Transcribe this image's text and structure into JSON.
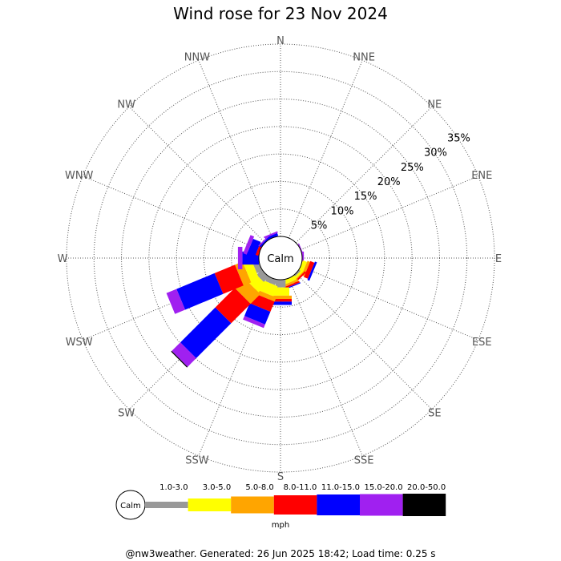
{
  "chart_data": {
    "type": "windrose",
    "title": "Wind rose for 23 Nov 2024",
    "directions": [
      "N",
      "NNE",
      "NE",
      "ENE",
      "E",
      "ESE",
      "SE",
      "SSE",
      "S",
      "SSW",
      "SW",
      "WSW",
      "W",
      "WNW",
      "NW",
      "NNW"
    ],
    "ring_labels": [
      "5%",
      "10%",
      "15%",
      "20%",
      "25%",
      "30%",
      "35%"
    ],
    "ring_values": [
      5,
      10,
      15,
      20,
      25,
      30,
      35
    ],
    "calm_label": "Calm",
    "speed_bins": [
      {
        "label": "1.0-3.0",
        "color": "#999999"
      },
      {
        "label": "3.0-5.0",
        "color": "#ffff00"
      },
      {
        "label": "5.0-8.0",
        "color": "#ffa500"
      },
      {
        "label": "8.0-11.0",
        "color": "#ff0000"
      },
      {
        "label": "11.0-15.0",
        "color": "#0000ff"
      },
      {
        "label": "15.0-20.0",
        "color": "#a020f0"
      },
      {
        "label": "20.0-50.0",
        "color": "#000000"
      }
    ],
    "series": [
      {
        "direction": "NNW",
        "values": [
          0,
          0,
          0,
          0,
          0.5,
          0.3,
          0
        ]
      },
      {
        "direction": "ENE",
        "values": [
          0,
          0,
          0,
          0,
          0,
          0.2,
          0
        ]
      },
      {
        "direction": "E",
        "values": [
          0,
          0,
          0,
          0,
          0,
          0.3,
          0
        ]
      },
      {
        "direction": "ESE",
        "values": [
          0,
          0.8,
          0.5,
          0.8,
          0.4,
          0,
          0
        ]
      },
      {
        "direction": "SE",
        "values": [
          0.3,
          0.4,
          0.2,
          0.3,
          0,
          0,
          0
        ]
      },
      {
        "direction": "SSE",
        "values": [
          0,
          0.8,
          0.4,
          0.3,
          0.2,
          0,
          0
        ]
      },
      {
        "direction": "S",
        "values": [
          1.4,
          1.5,
          0.6,
          0.5,
          0.6,
          0,
          0
        ]
      },
      {
        "direction": "SSW",
        "values": [
          1.0,
          2.0,
          0.8,
          2.0,
          2.5,
          0.7,
          0
        ]
      },
      {
        "direction": "SW",
        "values": [
          1.3,
          2.0,
          2.5,
          5.0,
          9.0,
          2.2,
          0.2
        ]
      },
      {
        "direction": "WSW",
        "values": [
          1.1,
          1.6,
          1.5,
          4.0,
          7.5,
          2.0,
          0
        ]
      },
      {
        "direction": "W",
        "values": [
          0,
          0,
          0,
          0,
          3.0,
          0.8,
          0
        ]
      },
      {
        "direction": "WNW",
        "values": [
          0,
          0,
          0,
          0.5,
          1.5,
          0.7,
          0
        ]
      },
      {
        "direction": "NW",
        "values": [
          0,
          0,
          0,
          0,
          0.3,
          0.2,
          0
        ]
      }
    ],
    "legend_unit": "mph"
  },
  "footer": "@nw3weather. Generated: 26 Jun 2025 18:42; Load time: 0.25 s"
}
